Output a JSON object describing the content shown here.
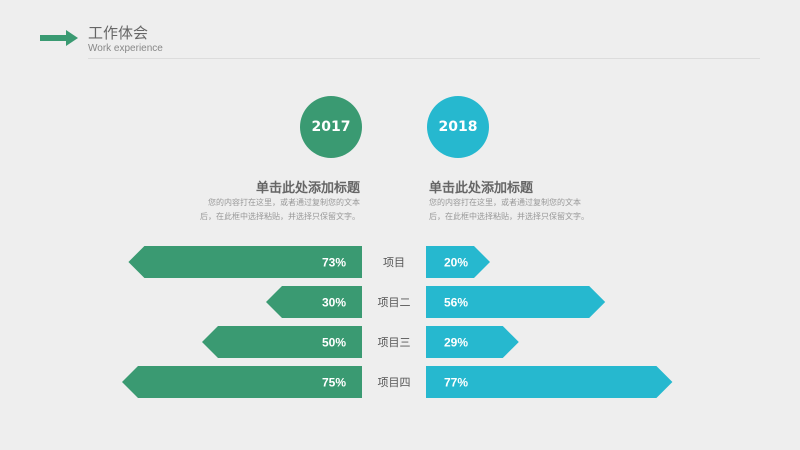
{
  "header": {
    "title": "工作体会",
    "subtitle": "Work experience"
  },
  "columns": [
    {
      "year": "2017",
      "heading": "单击此处添加标题",
      "desc_line1": "您的内容打在这里，或者通过复制您的文本",
      "desc_line2": "后，在此框中选择粘贴，并选择只保留文字。"
    },
    {
      "year": "2018",
      "heading": "单击此处添加标题",
      "desc_line1": "您的内容打在这里，或者通过复制您的文本",
      "desc_line2": "后，在此框中选择粘贴，并选择只保留文字。"
    }
  ],
  "colors": {
    "green": "#3a9a72",
    "blue": "#26b8cf",
    "text_gray": "#666666"
  },
  "chart_data": {
    "type": "bar",
    "categories": [
      "项目",
      "项目二",
      "项目三",
      "项目四"
    ],
    "series": [
      {
        "name": "2017",
        "values": [
          73,
          30,
          50,
          75
        ],
        "labels": [
          "73%",
          "30%",
          "50%",
          "75%"
        ],
        "direction": "left"
      },
      {
        "name": "2018",
        "values": [
          20,
          56,
          29,
          77
        ],
        "labels": [
          "20%",
          "56%",
          "29%",
          "77%"
        ],
        "direction": "right"
      }
    ],
    "title": "",
    "xlabel": "",
    "ylabel": "",
    "xlim": [
      0,
      100
    ]
  }
}
